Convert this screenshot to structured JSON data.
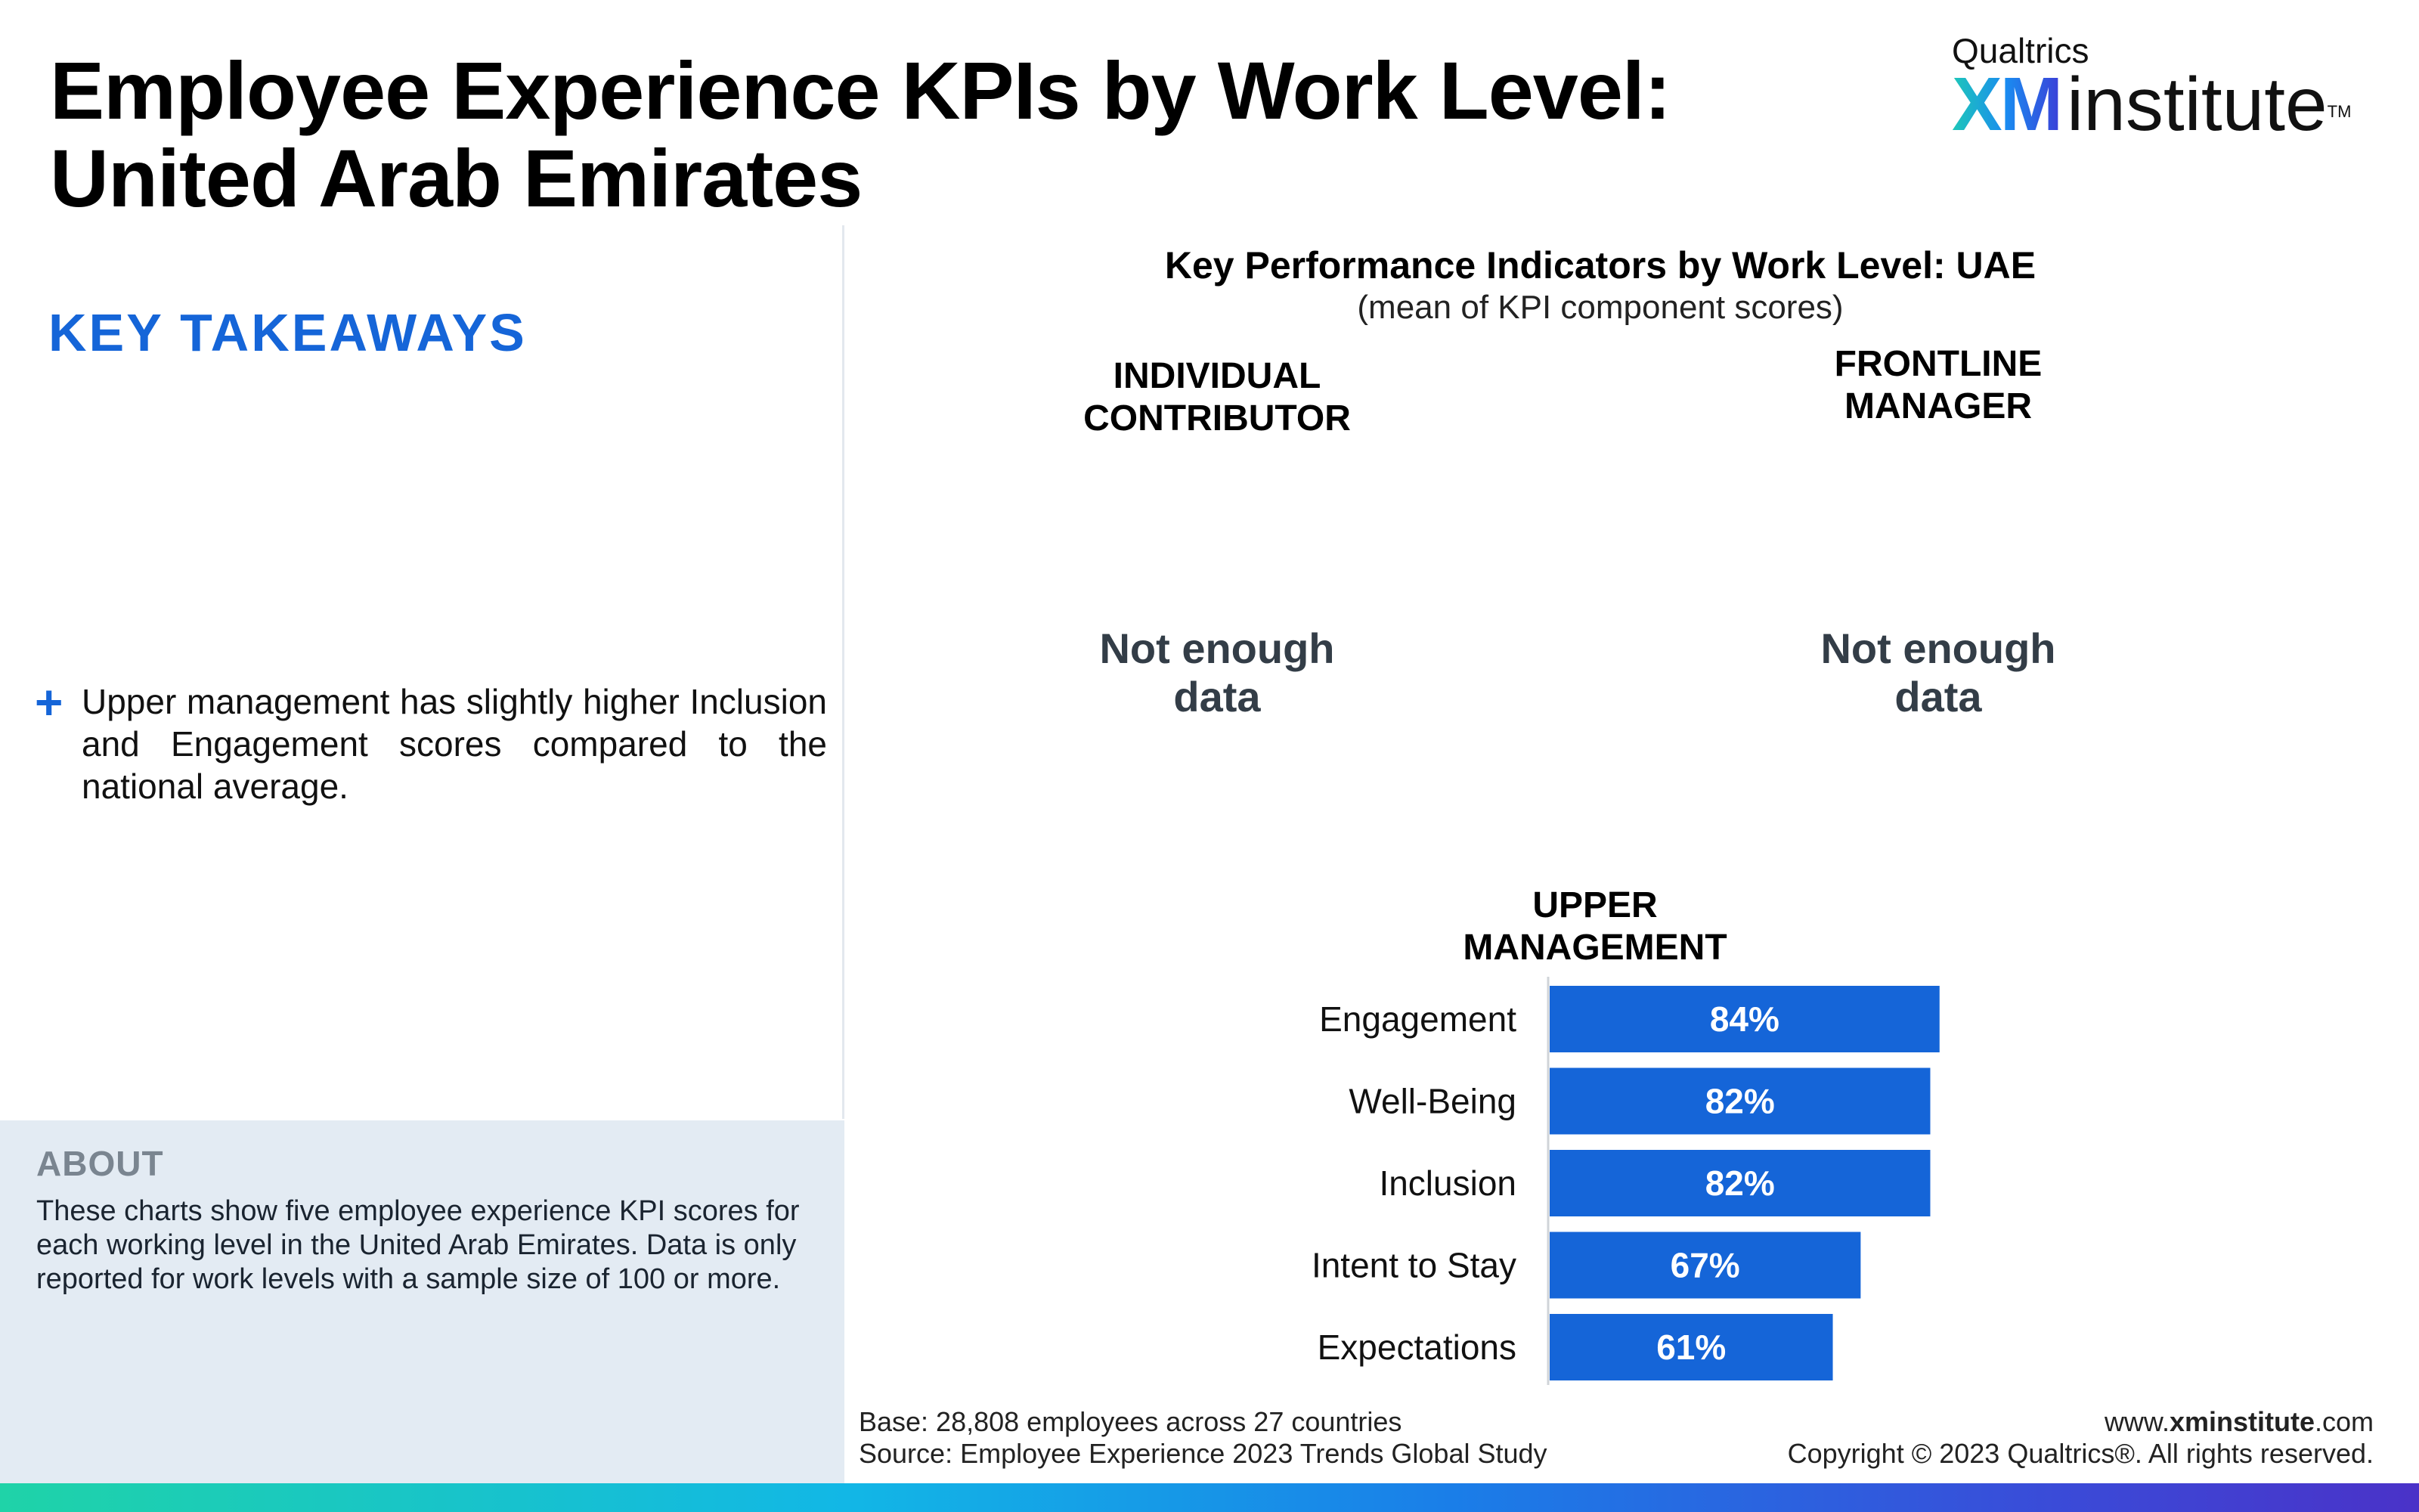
{
  "title": {
    "line1": "Employee Experience KPIs by Work Level:",
    "line2": "United Arab Emirates"
  },
  "logo": {
    "small": "Qualtrics",
    "xm": "XM",
    "word": "institute",
    "tm": "TM"
  },
  "takeaways": {
    "heading": "KEY TAKEAWAYS",
    "bullet_icon": "plus-icon",
    "items": [
      "Upper management has slightly higher Inclusion and Engagement scores compared to the national average."
    ]
  },
  "about": {
    "heading": "ABOUT",
    "text": "These charts show five employee experience KPI scores for each working level in the United Arab Emirates. Data is only reported for work levels with a sample size of 100 or more."
  },
  "chart_header": {
    "title": "Key Performance Indicators by Work Level: UAE",
    "subtitle": "(mean of KPI component scores)"
  },
  "panels": {
    "individual": {
      "line1": "INDIVIDUAL",
      "line2": "CONTRIBUTOR",
      "nodata1": "Not enough",
      "nodata2": "data"
    },
    "frontline": {
      "line1": "FRONTLINE",
      "line2": "MANAGER",
      "nodata1": "Not enough",
      "nodata2": "data"
    },
    "upper": {
      "line1": "UPPER",
      "line2": "MANAGEMENT"
    }
  },
  "chart_data": {
    "type": "bar",
    "orientation": "horizontal",
    "title": "UPPER MANAGEMENT",
    "categories": [
      "Engagement",
      "Well-Being",
      "Inclusion",
      "Intent to Stay",
      "Expectations"
    ],
    "values": [
      84,
      82,
      82,
      67,
      61
    ],
    "value_labels": [
      "84%",
      "82%",
      "82%",
      "67%",
      "61%"
    ],
    "unit": "%",
    "xlim": [
      0,
      100
    ],
    "grid": false,
    "legend": "none",
    "bar_color": "#1565d8",
    "label_color": "#ffffff"
  },
  "footer": {
    "base": "Base: 28,808 employees across 27 countries",
    "source": "Source: Employee Experience 2023 Trends Global Study",
    "url_prefix": "www.",
    "url_bold": "xminstitute",
    "url_suffix": ".com",
    "copyright": "Copyright © 2023 Qualtrics®. All rights reserved."
  },
  "colors": {
    "accent": "#1565d8",
    "about_bg": "#e3ebf3"
  }
}
